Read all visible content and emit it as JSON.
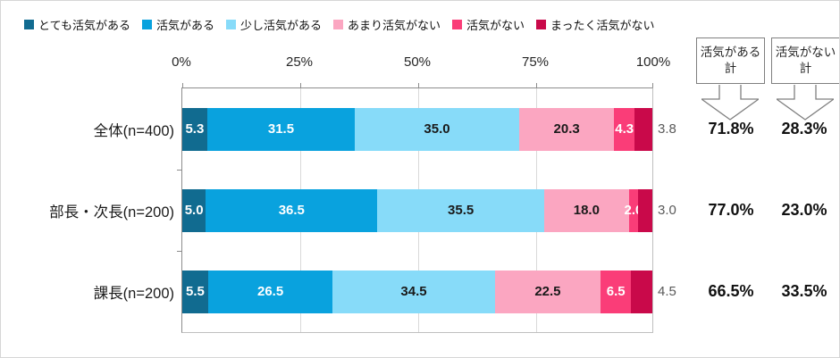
{
  "chart_data": {
    "type": "bar",
    "subtype": "horizontal-stacked-100pct",
    "title": "",
    "categories": [
      "全体(n=400)",
      "部長・次長(n=200)",
      "課長(n=200)"
    ],
    "series": [
      {
        "name": "とても活気がある",
        "color": "#116B90",
        "label_style": "inside-white",
        "values": [
          5.3,
          5.0,
          5.5
        ],
        "labels": [
          "5.3",
          "5.0",
          "5.5"
        ]
      },
      {
        "name": "活気がある",
        "color": "#09A2DE",
        "label_style": "inside-white",
        "values": [
          31.5,
          36.5,
          26.5
        ],
        "labels": [
          "31.5",
          "36.5",
          "26.5"
        ]
      },
      {
        "name": "少し活気がある",
        "color": "#87DBF9",
        "label_style": "inside-dark",
        "values": [
          35.0,
          35.5,
          34.5
        ],
        "labels": [
          "35.0",
          "35.5",
          "34.5"
        ]
      },
      {
        "name": "あまり活気がない",
        "color": "#FBA6C1",
        "label_style": "inside-dark",
        "values": [
          20.3,
          18.0,
          22.5
        ],
        "labels": [
          "20.3",
          "18.0",
          "22.5"
        ]
      },
      {
        "name": "活気がない",
        "color": "#FA3D78",
        "label_style": "inside-white",
        "values": [
          4.3,
          2.0,
          6.5
        ],
        "labels": [
          "4.3",
          "2.0",
          "6.5"
        ]
      },
      {
        "name": "まったく活気がない",
        "color": "#C9094A",
        "label_style": "outside-gray",
        "values": [
          3.8,
          3.0,
          4.5
        ],
        "labels": [
          "3.8",
          "3.0",
          "4.5"
        ]
      }
    ],
    "x_axis": {
      "tick_labels": [
        "0%",
        "25%",
        "50%",
        "75%",
        "100%"
      ],
      "min": 0,
      "max": 100,
      "gridlines": true,
      "position": "top"
    },
    "legend_position": "top-left",
    "totals": [
      {
        "header": "活気がある計",
        "values": [
          "71.8%",
          "77.0%",
          "66.5%"
        ]
      },
      {
        "header": "活気がない計",
        "values": [
          "28.3%",
          "23.0%",
          "33.5%"
        ]
      }
    ]
  },
  "colors": {
    "axis_line": "#8C8C8C",
    "gridline": "#D9D9D9",
    "inside_dark_label": "#1A1A1A",
    "inside_white_label": "#FFFFFF",
    "outside_label": "#595959",
    "callout_border": "#7F7F7F"
  }
}
